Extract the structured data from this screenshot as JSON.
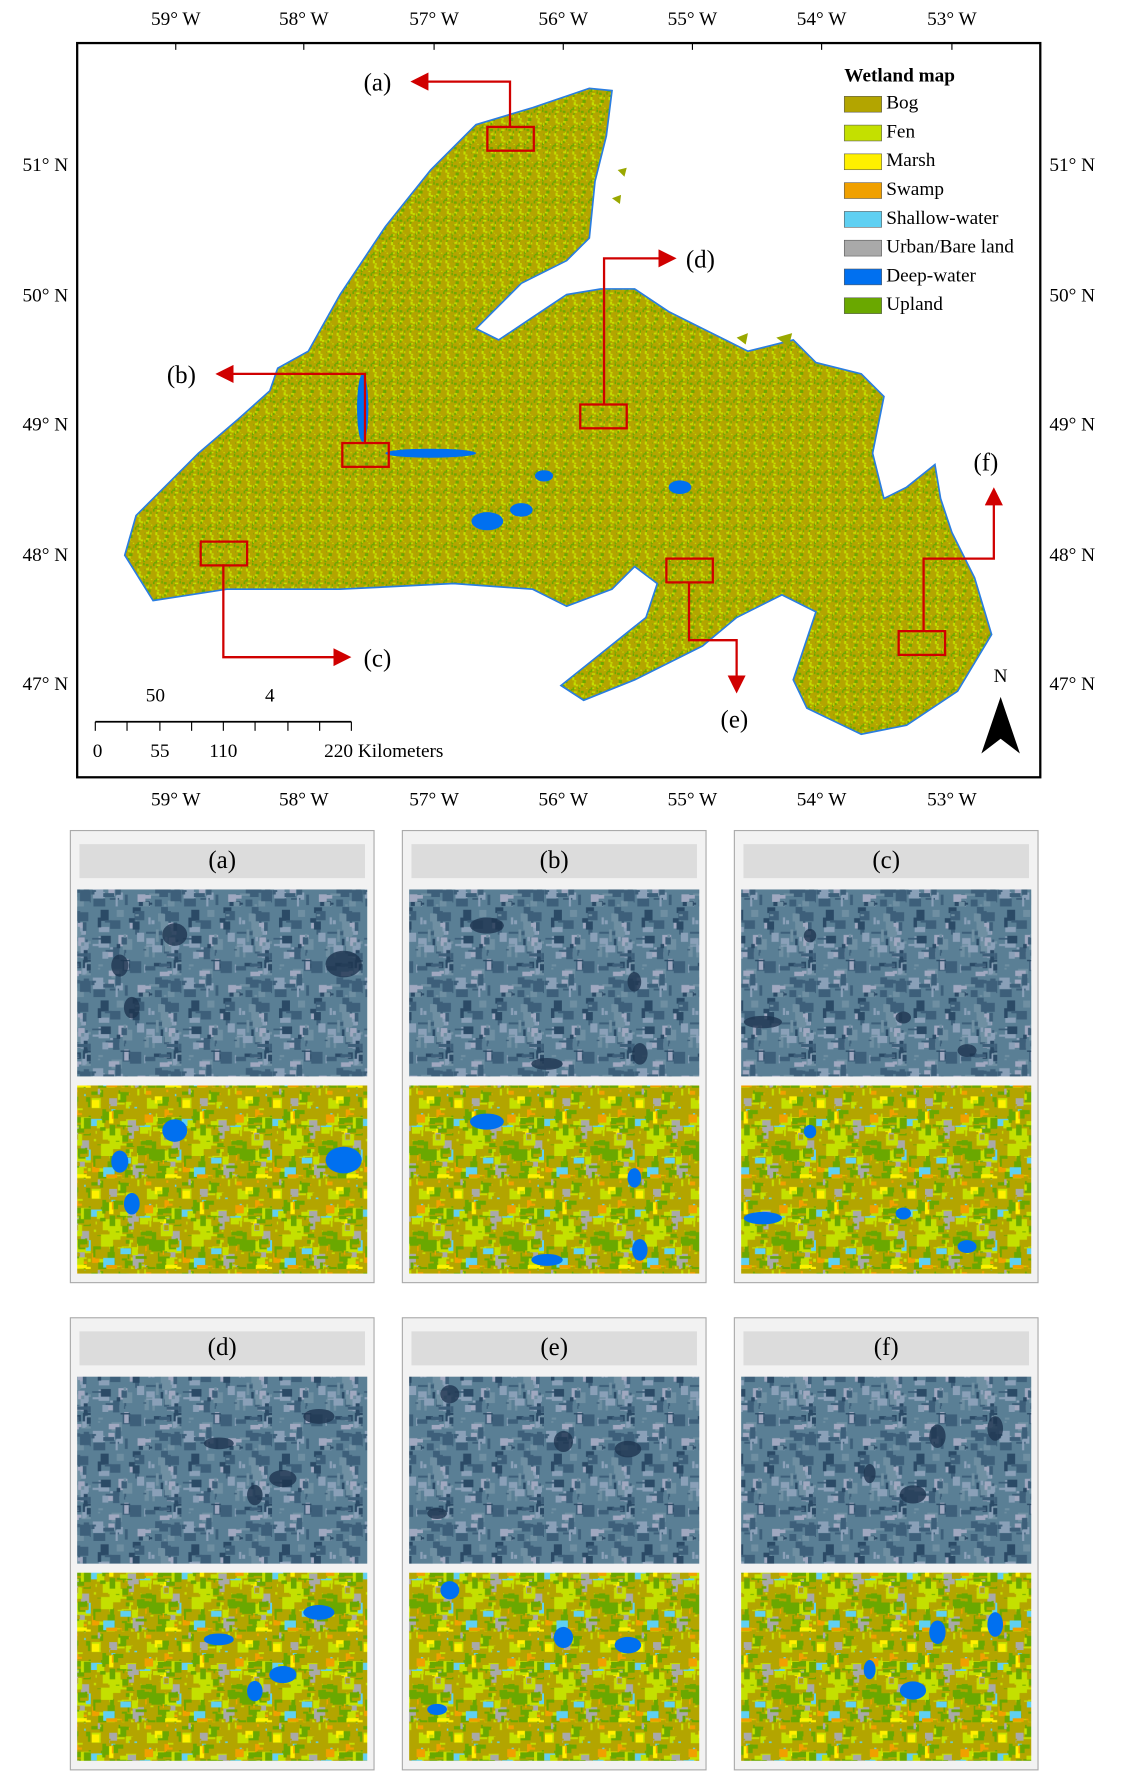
{
  "map": {
    "lon_labels": [
      "59° W",
      "58° W",
      "57° W",
      "56° W",
      "55° W",
      "54° W",
      "53° W"
    ],
    "lat_labels": [
      "51° N",
      "50° N",
      "49° N",
      "48° N",
      "47° N"
    ],
    "legend": {
      "title": "Wetland map",
      "items": [
        {
          "label": "Bog",
          "color": "#b3a500"
        },
        {
          "label": "Fen",
          "color": "#c4e000"
        },
        {
          "label": "Marsh",
          "color": "#fff000"
        },
        {
          "label": "Swamp",
          "color": "#f0a000"
        },
        {
          "label": "Shallow-water",
          "color": "#5fd0f2"
        },
        {
          "label": "Urban/Bare land",
          "color": "#a9a9a9"
        },
        {
          "label": "Deep-water",
          "color": "#0070f0"
        },
        {
          "label": "Upland",
          "color": "#6aa800"
        }
      ]
    },
    "callouts": [
      "(a)",
      "(b)",
      "(c)",
      "(d)",
      "(e)",
      "(f)"
    ],
    "scale_bar": {
      "upper_labels": [
        "50",
        "4"
      ],
      "labels": [
        "0",
        "55",
        "110",
        "220 Kilometers"
      ]
    },
    "north": "N"
  }
}
